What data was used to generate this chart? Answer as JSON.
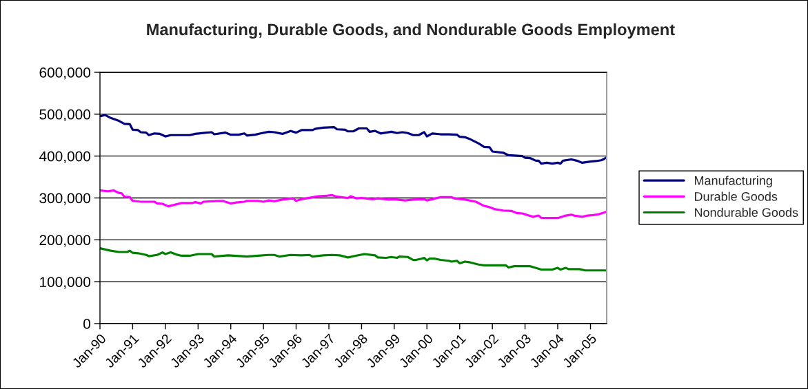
{
  "chart_data": {
    "type": "line",
    "title": "Manufacturing, Durable Goods, and Nondurable Goods Employment",
    "xlim": [
      "1990-01",
      "2005-07"
    ],
    "xticks": [
      {
        "value": "1990-01",
        "label": "Jan-90"
      },
      {
        "value": "1991-01",
        "label": "Jan-91"
      },
      {
        "value": "1992-01",
        "label": "Jan-92"
      },
      {
        "value": "1993-01",
        "label": "Jan-93"
      },
      {
        "value": "1994-01",
        "label": "Jan-94"
      },
      {
        "value": "1995-01",
        "label": "Jan-95"
      },
      {
        "value": "1996-01",
        "label": "Jan-96"
      },
      {
        "value": "1997-01",
        "label": "Jan-97"
      },
      {
        "value": "1998-01",
        "label": "Jan-98"
      },
      {
        "value": "1999-01",
        "label": "Jan-99"
      },
      {
        "value": "2000-01",
        "label": "Jan-00"
      },
      {
        "value": "2001-01",
        "label": "Jan-01"
      },
      {
        "value": "2002-01",
        "label": "Jan-02"
      },
      {
        "value": "2003-01",
        "label": "Jan-03"
      },
      {
        "value": "2004-01",
        "label": "Jan-04"
      },
      {
        "value": "2005-01",
        "label": "Jan-05"
      }
    ],
    "ylim": [
      0,
      600000
    ],
    "yticks": [
      0,
      {
        "value": 100000,
        "label": "100,000"
      },
      {
        "value": 200000,
        "label": "200,000"
      },
      {
        "value": 300000,
        "label": "300,000"
      },
      {
        "value": 400000,
        "label": "400,000"
      },
      {
        "value": 500000,
        "label": "500,000"
      },
      {
        "value": 600000,
        "label": "600,000"
      }
    ],
    "grid": "y",
    "legend": "right",
    "series": [
      {
        "name": "Manufacturing",
        "color": "#000080",
        "x": [
          "1990-01",
          "1990-03",
          "1990-05",
          "1990-08",
          "1990-10",
          "1990-12",
          "1991-01",
          "1991-03",
          "1991-04",
          "1991-06",
          "1991-07",
          "1991-09",
          "1991-11",
          "1992-01",
          "1992-03",
          "1992-10",
          "1992-12",
          "1993-03",
          "1993-06",
          "1993-07",
          "1993-11",
          "1994-01",
          "1994-04",
          "1994-06",
          "1994-07",
          "1994-10",
          "1994-12",
          "1995-03",
          "1995-05",
          "1995-08",
          "1995-11",
          "1996-01",
          "1996-03",
          "1996-07",
          "1996-08",
          "1996-11",
          "1997-03",
          "1997-04",
          "1997-07",
          "1997-08",
          "1997-10",
          "1997-12",
          "1998-03",
          "1998-04",
          "1998-06",
          "1998-08",
          "1998-12",
          "1999-02",
          "1999-04",
          "1999-06",
          "1999-08",
          "1999-10",
          "1999-12",
          "2000-01",
          "2000-03",
          "2000-06",
          "2000-09",
          "2000-12",
          "2001-01",
          "2001-03",
          "2001-05",
          "2001-08",
          "2001-10",
          "2001-12",
          "2002-01",
          "2002-05",
          "2002-07",
          "2002-12",
          "2003-01",
          "2003-03",
          "2003-05",
          "2003-06",
          "2003-07",
          "2003-09",
          "2003-11",
          "2004-01",
          "2004-02",
          "2004-03",
          "2004-06",
          "2004-08",
          "2004-10",
          "2005-01",
          "2005-03",
          "2005-05",
          "2005-06",
          "2005-07"
        ],
        "values": [
          495000,
          498000,
          491000,
          484000,
          477000,
          476000,
          463000,
          462000,
          457000,
          456000,
          450000,
          454000,
          453000,
          447000,
          450000,
          450000,
          453000,
          455000,
          457000,
          452000,
          456000,
          451000,
          451000,
          454000,
          449000,
          451000,
          454000,
          458000,
          457000,
          453000,
          460000,
          456000,
          462000,
          462000,
          465000,
          468000,
          469000,
          464000,
          463000,
          459000,
          459000,
          466000,
          466000,
          458000,
          460000,
          454000,
          458000,
          455000,
          457000,
          455000,
          450000,
          450000,
          457000,
          447000,
          454000,
          452000,
          452000,
          451000,
          446000,
          445000,
          440000,
          430000,
          422000,
          421000,
          411000,
          408000,
          402000,
          400000,
          396000,
          395000,
          389000,
          389000,
          382000,
          384000,
          382000,
          384000,
          382000,
          389000,
          392000,
          389000,
          384000,
          387000,
          388000,
          390000,
          393000,
          397000
        ]
      },
      {
        "name": "Durable Goods",
        "color": "#ff00ff",
        "x": [
          "1990-01",
          "1990-04",
          "1990-06",
          "1990-08",
          "1990-09",
          "1990-10",
          "1990-12",
          "1991-01",
          "1991-04",
          "1991-09",
          "1991-10",
          "1991-12",
          "1992-02",
          "1992-04",
          "1992-07",
          "1992-11",
          "1992-12",
          "1993-02",
          "1993-03",
          "1993-06",
          "1993-10",
          "1994-01",
          "1994-03",
          "1994-06",
          "1994-07",
          "1994-11",
          "1995-01",
          "1995-03",
          "1995-05",
          "1995-08",
          "1995-12",
          "1996-01",
          "1996-03",
          "1996-09",
          "1996-12",
          "1997-02",
          "1997-04",
          "1997-08",
          "1997-09",
          "1997-11",
          "1998-01",
          "1998-05",
          "1998-07",
          "1998-11",
          "1999-01",
          "1999-05",
          "1999-08",
          "1999-12",
          "2000-01",
          "2000-03",
          "2000-06",
          "2000-10",
          "2000-11",
          "2001-03",
          "2001-07",
          "2001-10",
          "2001-12",
          "2002-02",
          "2002-05",
          "2002-08",
          "2002-10",
          "2002-12",
          "2003-02",
          "2003-04",
          "2003-06",
          "2003-07",
          "2004-01",
          "2004-04",
          "2004-06",
          "2004-07",
          "2004-10",
          "2004-12",
          "2005-02",
          "2005-04",
          "2005-06",
          "2005-07"
        ],
        "values": [
          318000,
          316000,
          318000,
          312000,
          311000,
          303000,
          302000,
          293000,
          291000,
          291000,
          287000,
          286000,
          280000,
          283000,
          288000,
          288000,
          290000,
          287000,
          291000,
          292000,
          293000,
          287000,
          289000,
          291000,
          293000,
          293000,
          291000,
          294000,
          292000,
          296000,
          299000,
          293000,
          297000,
          304000,
          305000,
          307000,
          303000,
          300000,
          304000,
          299000,
          300000,
          297000,
          299000,
          296000,
          297000,
          294000,
          296000,
          297000,
          294000,
          297000,
          302000,
          302000,
          299000,
          296000,
          291000,
          281000,
          278000,
          273000,
          270000,
          269000,
          264000,
          263000,
          259000,
          255000,
          258000,
          252000,
          252000,
          258000,
          260000,
          258000,
          255000,
          258000,
          259000,
          261000,
          265000,
          267000
        ]
      },
      {
        "name": "Nondurable Goods",
        "color": "#008000",
        "x": [
          "1990-01",
          "1990-03",
          "1990-05",
          "1990-08",
          "1990-11",
          "1990-12",
          "1991-01",
          "1991-03",
          "1991-06",
          "1991-07",
          "1991-10",
          "1991-12",
          "1992-01",
          "1992-03",
          "1992-05",
          "1992-07",
          "1992-10",
          "1993-01",
          "1993-06",
          "1993-07",
          "1993-12",
          "1994-02",
          "1994-07",
          "1994-11",
          "1995-03",
          "1995-05",
          "1995-07",
          "1995-11",
          "1996-03",
          "1996-06",
          "1996-07",
          "1996-11",
          "1997-02",
          "1997-05",
          "1997-08",
          "1998-02",
          "1998-06",
          "1998-07",
          "1998-10",
          "1998-12",
          "1999-02",
          "1999-03",
          "1999-06",
          "1999-08",
          "1999-09",
          "1999-11",
          "1999-12",
          "2000-01",
          "2000-02",
          "2000-04",
          "2000-06",
          "2000-09",
          "2000-10",
          "2000-12",
          "2001-01",
          "2001-03",
          "2001-05",
          "2001-08",
          "2001-10",
          "2002-06",
          "2002-07",
          "2002-09",
          "2003-03",
          "2003-07",
          "2003-11",
          "2004-01",
          "2004-02",
          "2004-04",
          "2004-05",
          "2004-09",
          "2004-11",
          "2005-07"
        ],
        "values": [
          180000,
          177000,
          174000,
          171000,
          171000,
          174000,
          169000,
          168000,
          164000,
          161000,
          164000,
          170000,
          166000,
          170000,
          165000,
          162000,
          162000,
          166000,
          166000,
          160000,
          163000,
          162000,
          160000,
          162000,
          164000,
          164000,
          160000,
          164000,
          163000,
          164000,
          160000,
          163000,
          164000,
          163000,
          158000,
          166000,
          163000,
          158000,
          157000,
          159000,
          157000,
          160000,
          159000,
          152000,
          152000,
          155000,
          157000,
          151000,
          155000,
          155000,
          152000,
          150000,
          148000,
          150000,
          144000,
          148000,
          146000,
          141000,
          139000,
          139000,
          134000,
          137000,
          137000,
          129000,
          129000,
          133000,
          129000,
          133000,
          130000,
          130000,
          127000,
          127000
        ]
      }
    ]
  }
}
